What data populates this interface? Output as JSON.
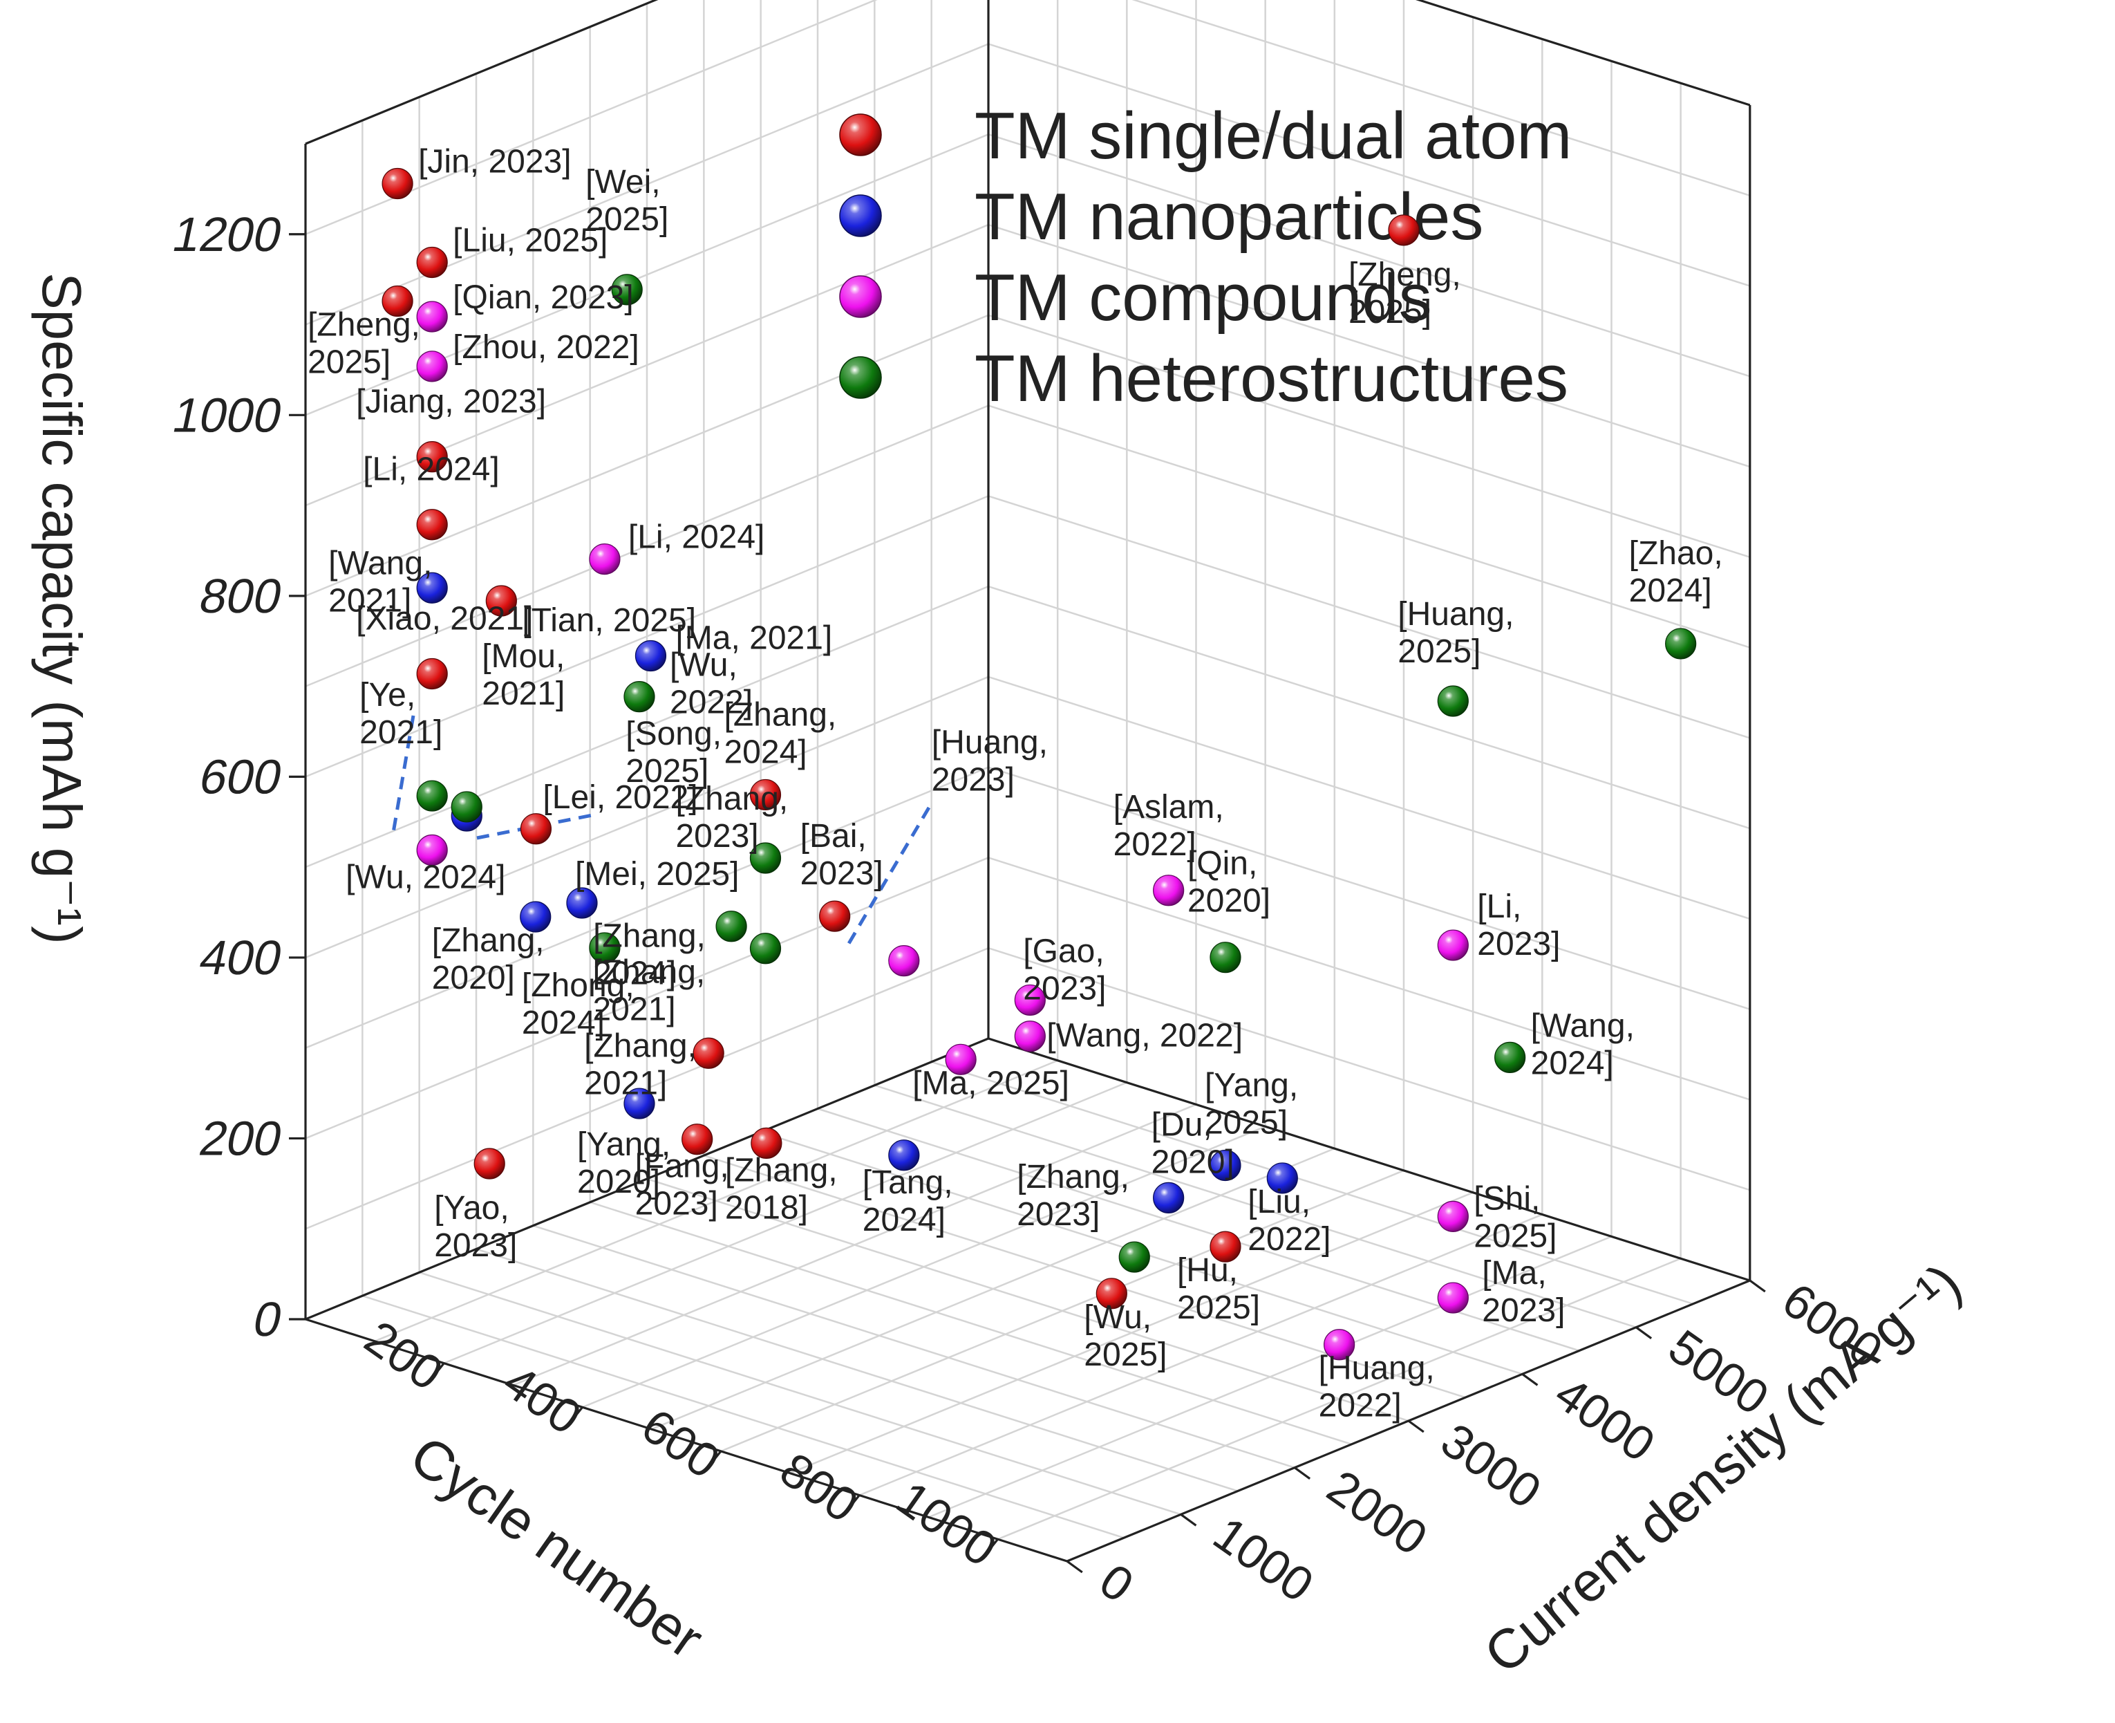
{
  "chart_data": {
    "type": "scatter",
    "title": "",
    "xlabel": "Cycle number",
    "ylabel": "Current density (mA g⁻¹)",
    "zlabel": "Specific capacity (mAh g⁻¹)",
    "xlim": [
      0,
      1100
    ],
    "ylim": [
      0,
      6000
    ],
    "zlim": [
      0,
      1300
    ],
    "x_ticks": [
      "200",
      "400",
      "600",
      "800",
      "1000"
    ],
    "y_ticks": [
      "0",
      "1000",
      "2000",
      "3000",
      "4000",
      "5000",
      "6000"
    ],
    "z_ticks": [
      "0",
      "200",
      "400",
      "600",
      "800",
      "1000",
      "1200"
    ],
    "legend_position": "top-right",
    "series": [
      {
        "name": "TM single/dual atom",
        "color": "#dd1111",
        "points": [
          {
            "label": "[Jin, 2023]",
            "x": 100,
            "y": 200,
            "z": 1270
          },
          {
            "label": "[Liu, 2025]",
            "x": 150,
            "y": 200,
            "z": 1195
          },
          {
            "label": "[Zheng, 2025]",
            "x": 100,
            "y": 200,
            "z": 1140
          },
          {
            "label": "[Jiang, 2023]",
            "x": 150,
            "y": 200,
            "z": 980
          },
          {
            "label": "[Li, 2024]",
            "x": 150,
            "y": 200,
            "z": 905
          },
          {
            "label": "[Tian, 2025]",
            "x": 250,
            "y": 200,
            "z": 845
          },
          {
            "label": "[Xiao, 2021]",
            "x": 150,
            "y": 200,
            "z": 740
          },
          {
            "label": "[Lei, 2022]",
            "x": 300,
            "y": 200,
            "z": 605
          },
          {
            "label": "[Zhang, 2024]",
            "x": 500,
            "y": 1000,
            "z": 650
          },
          {
            "label": "[Bai, 2023]",
            "x": 600,
            "y": 1000,
            "z": 540
          },
          {
            "label": "[Zhang, 2021]",
            "x": 500,
            "y": 500,
            "z": 390
          },
          {
            "label": "[Fang, 2023]",
            "x": 500,
            "y": 400,
            "z": 300
          },
          {
            "label": "[Zhang, 2018]",
            "x": 600,
            "y": 400,
            "z": 320
          },
          {
            "label": "[Yao, 2023]",
            "x": 200,
            "y": 400,
            "z": 200
          },
          {
            "label": "[Wu, 2025]",
            "x": 1000,
            "y": 1000,
            "z": 220
          },
          {
            "label": "[Hu, 2025]",
            "x": 1000,
            "y": 2000,
            "z": 220
          },
          {
            "label": "[Zheng, 2025]",
            "x": 600,
            "y": 6000,
            "z": 1040
          }
        ]
      },
      {
        "name": "TM nanoparticles",
        "color": "#1a22dd",
        "points": [
          {
            "label": "[Wang, 2021]",
            "x": 150,
            "y": 200,
            "z": 835
          },
          {
            "label": "[Ma, 2021]",
            "x": 400,
            "y": 600,
            "z": 800
          },
          {
            "label": "[Mou, 2021]",
            "x": 200,
            "y": 200,
            "z": 595
          },
          {
            "label": "[Mei, 2025]",
            "x": 350,
            "y": 300,
            "z": 530
          },
          {
            "label": "[Zhang, 2020]",
            "x": 250,
            "y": 500,
            "z": 480
          },
          {
            "label": "[Yang, 2020]",
            "x": 400,
            "y": 500,
            "z": 310
          },
          {
            "label": "[Tang, 2024]",
            "x": 700,
            "y": 1000,
            "z": 300
          },
          {
            "label": "[Du, 2020]",
            "x": 1000,
            "y": 1500,
            "z": 300
          },
          {
            "label": "[Yang, 2025]",
            "x": 1000,
            "y": 2000,
            "z": 310
          },
          {
            "label": "[Liu, 2022]",
            "x": 1000,
            "y": 2500,
            "z": 270
          }
        ]
      },
      {
        "name": "TM compounds",
        "color": "#ee11ee",
        "points": [
          {
            "label": "[Qian, 2023]",
            "x": 150,
            "y": 200,
            "z": 1135
          },
          {
            "label": "[Zhou, 2022]",
            "x": 150,
            "y": 200,
            "z": 1080
          },
          {
            "label": "[Li, 2024]",
            "x": 350,
            "y": 500,
            "z": 900
          },
          {
            "label": "[Wu, 2024]",
            "x": 150,
            "y": 200,
            "z": 545
          },
          {
            "label": "[Huang, 2023]",
            "x": 700,
            "y": 1000,
            "z": 515
          },
          {
            "label": "[Aslam, 2022]",
            "x": 1000,
            "y": 1500,
            "z": 640
          },
          {
            "label": "[Gao, 2023]",
            "x": 800,
            "y": 1500,
            "z": 470
          },
          {
            "label": "[Wang, 2022]",
            "x": 800,
            "y": 1500,
            "z": 430
          },
          {
            "label": "[Ma, 2025]",
            "x": 700,
            "y": 1500,
            "z": 380
          },
          {
            "label": "[Li, 2023]",
            "x": 1000,
            "y": 4000,
            "z": 450
          },
          {
            "label": "[Shi, 2025]",
            "x": 1000,
            "y": 4000,
            "z": 150
          },
          {
            "label": "[Ma, 2023]",
            "x": 1000,
            "y": 4000,
            "z": 60
          },
          {
            "label": "[Huang, 2022]",
            "x": 1000,
            "y": 3000,
            "z": 60
          }
        ]
      },
      {
        "name": "TM heterostructures",
        "color": "#0e7a0e",
        "points": [
          {
            "label": "[Wei, 2025]",
            "x": 300,
            "y": 1000,
            "z": 1160
          },
          {
            "label": "[Wu, 2022]",
            "x": 400,
            "y": 500,
            "z": 760
          },
          {
            "label": "[Ye, 2021]",
            "x": 150,
            "y": 200,
            "z": 605
          },
          {
            "label": "[Song, 2025]",
            "x": 200,
            "y": 200,
            "z": 605
          },
          {
            "label": "[Zhang, 2023]",
            "x": 500,
            "y": 1000,
            "z": 580
          },
          {
            "label": "[Zhang, 2024]",
            "x": 500,
            "y": 700,
            "z": 520
          },
          {
            "label": "[Zhong, 2024]",
            "x": 350,
            "y": 500,
            "z": 470
          },
          {
            "label": "[Zhang, 2021]",
            "x": 500,
            "y": 1000,
            "z": 480
          },
          {
            "label": "[Qin, 2020]",
            "x": 1000,
            "y": 2000,
            "z": 540
          },
          {
            "label": "[Zhang, 2023]",
            "x": 1000,
            "y": 1200,
            "z": 250
          },
          {
            "label": "[Huang, 2025]",
            "x": 1000,
            "y": 4000,
            "z": 720
          },
          {
            "label": "[Wang, 2024]",
            "x": 1000,
            "y": 4500,
            "z": 300
          },
          {
            "label": "[Zhao, 2024]",
            "x": 1000,
            "y": 6000,
            "z": 680
          }
        ]
      }
    ]
  }
}
